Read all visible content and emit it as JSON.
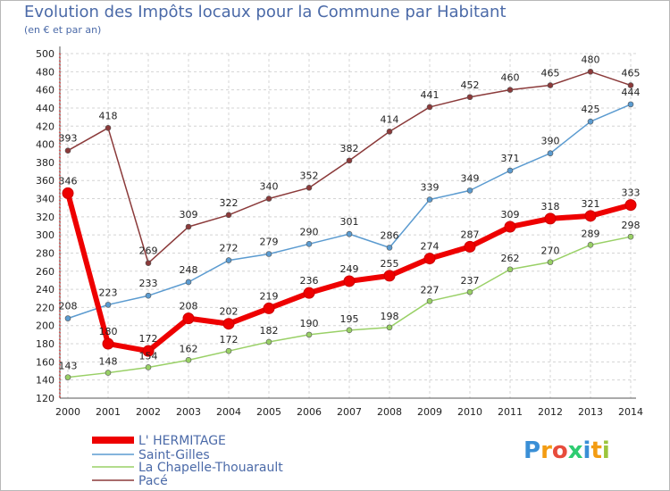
{
  "title": "Evolution des Impôts locaux pour la Commune par Habitant",
  "subtitle": "(en € et par an)",
  "logo_text": "Proxiti",
  "chart_data": {
    "type": "line",
    "x": [
      2000,
      2001,
      2002,
      2003,
      2004,
      2005,
      2006,
      2007,
      2008,
      2009,
      2010,
      2011,
      2012,
      2013,
      2014
    ],
    "ylim": [
      120,
      500
    ],
    "yticks": [
      120,
      140,
      160,
      180,
      200,
      220,
      240,
      260,
      280,
      300,
      320,
      340,
      360,
      380,
      400,
      420,
      440,
      460,
      480,
      500
    ],
    "grid": true,
    "legend_position": "bottom-left",
    "series": [
      {
        "name": "L' HERMITAGE",
        "color": "#ee0000",
        "values": [
          346,
          180,
          172,
          208,
          202,
          219,
          236,
          249,
          255,
          274,
          287,
          309,
          318,
          321,
          333
        ]
      },
      {
        "name": "Saint-Gilles",
        "color": "#5b9bd0",
        "values": [
          208,
          223,
          233,
          248,
          272,
          279,
          290,
          301,
          286,
          339,
          349,
          371,
          390,
          425,
          444
        ]
      },
      {
        "name": "La Chapelle-Thouarault",
        "color": "#99d066",
        "values": [
          143,
          148,
          154,
          162,
          172,
          182,
          190,
          195,
          198,
          227,
          237,
          262,
          270,
          289,
          298
        ]
      },
      {
        "name": "Pacé",
        "color": "#8b3a3a",
        "values": [
          393,
          418,
          269,
          309,
          322,
          340,
          352,
          382,
          414,
          441,
          452,
          460,
          465,
          480,
          465
        ]
      }
    ]
  }
}
